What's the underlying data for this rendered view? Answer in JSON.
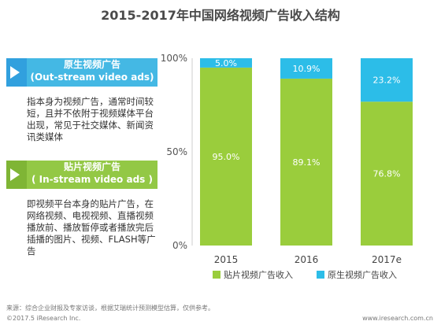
{
  "title": "2015-2017年中国网络视频广告收入结构",
  "definitions": [
    {
      "label_cn": "原生视频广告",
      "label_en": "(Out-stream video ads)",
      "desc": "指本身为视频广告，通常时间较短，且并不依附于视频媒体平台出现，常见于社交媒体、新闻资讯类媒体"
    },
    {
      "label_cn": "贴片视频广告",
      "label_en": "( In-stream video ads )",
      "desc": "即视频平台本身的贴片广告，在网络视频、电视视频、直播视频播放前、播放暂停或者播放完后插播的图片、视频、FLASH等广告"
    }
  ],
  "footer": {
    "source": "来源：综合企业财报及专家访谈，根据艾瑞统计预测模型估算，仅供参考。",
    "copyright": "©2017.5 iResearch Inc.",
    "site": "www.iresearch.com.cn"
  },
  "chart_data": {
    "type": "bar",
    "stacked": true,
    "percent": true,
    "categories": [
      "2015",
      "2016",
      "2017e"
    ],
    "series": [
      {
        "name": "贴片视频广告收入",
        "values": [
          95.0,
          89.1,
          76.8
        ],
        "labels": [
          "95.0%",
          "89.1%",
          "76.8%"
        ],
        "color": "#9acd3c"
      },
      {
        "name": "原生视频广告收入",
        "values": [
          5.0,
          10.9,
          23.2
        ],
        "labels": [
          "5.0%",
          "10.9%",
          "23.2%"
        ],
        "color": "#2cbde8"
      }
    ],
    "ylim": [
      0,
      100
    ],
    "yticks": [
      "0%",
      "50%",
      "100%"
    ],
    "grid": false,
    "legend_position": "bottom"
  }
}
